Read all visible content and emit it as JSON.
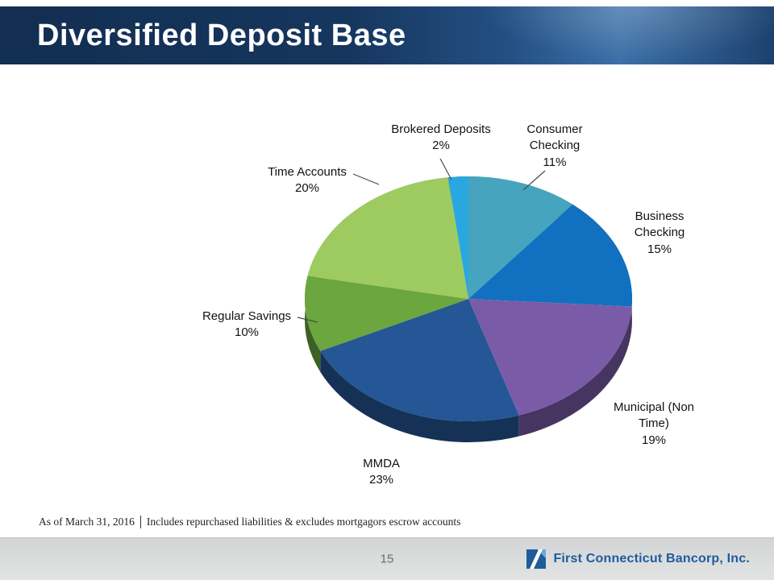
{
  "slide": {
    "title": "Diversified Deposit Base",
    "footer": {
      "as_of": "As of March 31, 2016",
      "note": "Includes repurchased liabilities & excludes mortgagors escrow accounts"
    },
    "page_number": "15",
    "brand": "First Connecticut Bancorp, Inc."
  },
  "colors": {
    "header_navy": "#16365E",
    "header_highlight": "#3C70A8",
    "brand_blue": "#1D5C9E",
    "bottom_bar_gray": "#d2d4d5"
  },
  "chart_data": {
    "type": "pie",
    "title": "Diversified Deposit Base",
    "unit": "%",
    "style": "3d-pie",
    "start_angle_deg": -90,
    "direction": "clockwise",
    "legend": "none",
    "labels_shown": true,
    "slices": [
      {
        "label": "Consumer Checking",
        "pct": 11,
        "display": "11%",
        "color": "#47A4BE"
      },
      {
        "label": "Business Checking",
        "pct": 15,
        "display": "15%",
        "color": "#1170C0"
      },
      {
        "label": "Municipal (Non Time)",
        "pct": 19,
        "display": "19%",
        "color": "#7A5BA8"
      },
      {
        "label": "MMDA",
        "pct": 23,
        "display": "23%",
        "color": "#255695"
      },
      {
        "label": "Regular Savings",
        "pct": 10,
        "display": "10%",
        "color": "#6BA63F"
      },
      {
        "label": "Time Accounts",
        "pct": 20,
        "display": "20%",
        "color": "#9ECB60"
      },
      {
        "label": "Brokered Deposits",
        "pct": 2,
        "display": "2%",
        "color": "#29A8E0"
      }
    ]
  }
}
